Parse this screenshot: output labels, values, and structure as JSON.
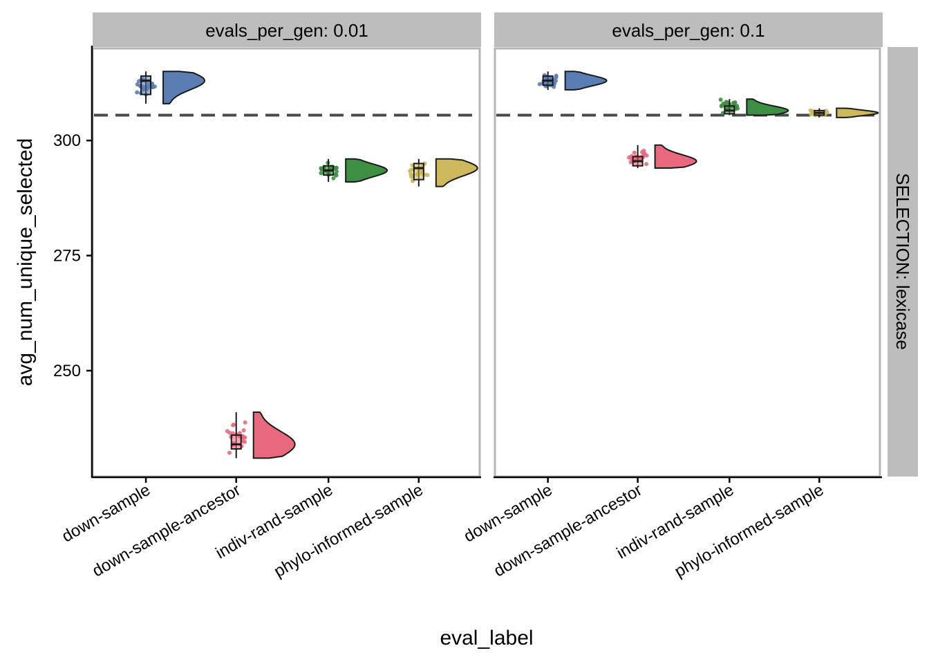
{
  "chart_data": {
    "type": "raincloud",
    "xlabel": "eval_label",
    "ylabel": "avg_num_unique_selected",
    "categories": [
      "down-sample",
      "down-sample-ancestor",
      "indiv-rand-sample",
      "phylo-informed-sample"
    ],
    "yticks": [
      250,
      275,
      300
    ],
    "ylim": [
      227,
      320
    ],
    "reference_line": 305.5,
    "row_strip": "SELECTION: lexicase",
    "colors": {
      "down-sample": "#5a7db3",
      "down-sample-ancestor": "#e8697e",
      "indiv-rand-sample": "#3e8e44",
      "phylo-informed-sample": "#cdb95b"
    },
    "panels": [
      {
        "strip": "evals_per_gen: 0.01",
        "groups": [
          {
            "category": "down-sample",
            "min": 308,
            "q1": 310,
            "median": 313,
            "q3": 314,
            "max": 315
          },
          {
            "category": "down-sample-ancestor",
            "min": 231,
            "q1": 233,
            "median": 234,
            "q3": 236,
            "max": 241
          },
          {
            "category": "indiv-rand-sample",
            "min": 291,
            "q1": 292.5,
            "median": 293.5,
            "q3": 294.5,
            "max": 296
          },
          {
            "category": "phylo-informed-sample",
            "min": 290,
            "q1": 291.5,
            "median": 294,
            "q3": 295,
            "max": 296
          }
        ]
      },
      {
        "strip": "evals_per_gen: 0.1",
        "groups": [
          {
            "category": "down-sample",
            "min": 311,
            "q1": 312,
            "median": 313,
            "q3": 314,
            "max": 315
          },
          {
            "category": "down-sample-ancestor",
            "min": 294,
            "q1": 294.5,
            "median": 295.5,
            "q3": 296.5,
            "max": 299
          },
          {
            "category": "indiv-rand-sample",
            "min": 305.5,
            "q1": 305.8,
            "median": 306.5,
            "q3": 307.5,
            "max": 309
          },
          {
            "category": "phylo-informed-sample",
            "min": 305,
            "q1": 305.5,
            "median": 306,
            "q3": 306.5,
            "max": 307
          }
        ]
      }
    ]
  }
}
